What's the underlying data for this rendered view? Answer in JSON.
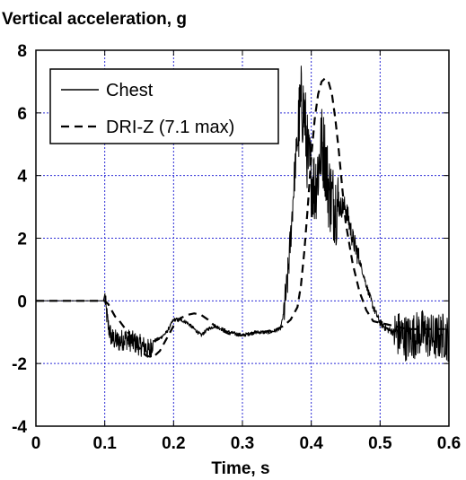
{
  "chart_data": {
    "type": "line",
    "title": "Vertical acceleration, g",
    "xlabel": "Time, s",
    "ylabel": "",
    "xlim": [
      0,
      0.6
    ],
    "ylim": [
      -4,
      8
    ],
    "xticks": [
      0,
      0.1,
      0.2,
      0.3,
      0.4,
      0.5,
      0.6
    ],
    "yticks": [
      -4,
      -2,
      0,
      2,
      4,
      6,
      8
    ],
    "xtick_labels": [
      "0",
      "0.1",
      "0.2",
      "0.3",
      "0.4",
      "0.5",
      "0.6"
    ],
    "ytick_labels": [
      "-4",
      "-2",
      "0",
      "2",
      "4",
      "6",
      "8"
    ],
    "grid": true,
    "grid_color": "#2b2bd6",
    "legend_position": "top-left",
    "series": [
      {
        "name": "Chest",
        "style": "solid",
        "color": "#000000",
        "noisy": true,
        "x": [
          0,
          0.05,
          0.098,
          0.1,
          0.102,
          0.105,
          0.11,
          0.12,
          0.13,
          0.14,
          0.15,
          0.16,
          0.165,
          0.17,
          0.18,
          0.19,
          0.2,
          0.21,
          0.22,
          0.23,
          0.24,
          0.25,
          0.26,
          0.28,
          0.3,
          0.32,
          0.34,
          0.355,
          0.36,
          0.365,
          0.37,
          0.375,
          0.38,
          0.385,
          0.39,
          0.395,
          0.4,
          0.405,
          0.41,
          0.415,
          0.42,
          0.425,
          0.43,
          0.44,
          0.45,
          0.46,
          0.47,
          0.48,
          0.49,
          0.5,
          0.51,
          0.52,
          0.53,
          0.54,
          0.55,
          0.56,
          0.57,
          0.58,
          0.59,
          0.6
        ],
        "y": [
          0,
          0,
          0,
          0.2,
          -0.3,
          -0.8,
          -1.2,
          -1.3,
          -1.2,
          -1.3,
          -1.4,
          -1.5,
          -1.6,
          -1.3,
          -1.2,
          -1.0,
          -0.6,
          -0.6,
          -0.7,
          -0.9,
          -1.1,
          -0.9,
          -0.8,
          -1.0,
          -1.1,
          -1.0,
          -1.0,
          -0.9,
          -0.4,
          0.5,
          2.0,
          3.8,
          5.2,
          6.3,
          6.0,
          4.5,
          4.0,
          3.6,
          4.2,
          5.0,
          4.6,
          3.6,
          3.2,
          3.0,
          3.0,
          2.0,
          1.3,
          0.5,
          -0.2,
          -0.7,
          -0.9,
          -1.0,
          -1.1,
          -1.2,
          -1.1,
          -1.0,
          -1.1,
          -1.2,
          -1.1,
          -1.2
        ]
      },
      {
        "name": "DRI-Z (7.1 max)",
        "style": "dashed",
        "color": "#000000",
        "noisy": false,
        "x": [
          0,
          0.05,
          0.1,
          0.105,
          0.11,
          0.115,
          0.12,
          0.13,
          0.14,
          0.15,
          0.16,
          0.17,
          0.18,
          0.19,
          0.2,
          0.21,
          0.22,
          0.23,
          0.24,
          0.25,
          0.26,
          0.27,
          0.28,
          0.29,
          0.3,
          0.31,
          0.32,
          0.33,
          0.34,
          0.35,
          0.36,
          0.37,
          0.38,
          0.385,
          0.39,
          0.395,
          0.4,
          0.405,
          0.41,
          0.415,
          0.42,
          0.425,
          0.43,
          0.435,
          0.44,
          0.445,
          0.45,
          0.46,
          0.47,
          0.48,
          0.49,
          0.5,
          0.51,
          0.52,
          0.53,
          0.54,
          0.55,
          0.56,
          0.57,
          0.58,
          0.59,
          0.6
        ],
        "y": [
          0,
          0,
          0,
          -0.1,
          -0.3,
          -0.5,
          -0.6,
          -0.9,
          -1.2,
          -1.5,
          -1.75,
          -1.8,
          -1.6,
          -1.2,
          -0.8,
          -0.55,
          -0.45,
          -0.4,
          -0.45,
          -0.6,
          -0.8,
          -0.95,
          -1.05,
          -1.1,
          -1.1,
          -1.05,
          -1.0,
          -1.0,
          -0.95,
          -0.9,
          -0.8,
          -0.6,
          -0.2,
          0.5,
          1.6,
          3.0,
          4.6,
          5.8,
          6.6,
          7.0,
          7.1,
          7.0,
          6.6,
          5.8,
          4.8,
          3.6,
          2.5,
          1.2,
          0.3,
          -0.3,
          -0.65,
          -0.7,
          -0.75,
          -0.8,
          -0.85,
          -0.9,
          -0.9,
          -0.9,
          -0.9,
          -0.9,
          -0.9,
          -0.9
        ]
      }
    ]
  }
}
